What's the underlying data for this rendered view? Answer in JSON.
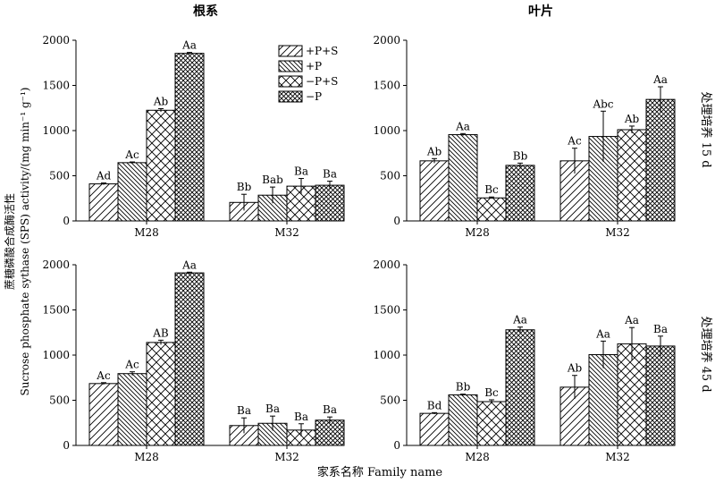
{
  "xlabel": "家系名称 Family name",
  "ylabel_cn": "蔗糖磷酸合成酶活性",
  "ylabel_en": "Sucrose phosphate sythase (SPS) activity/(mg min⁻¹ g⁻¹)",
  "col_titles": [
    "根系",
    "叶片"
  ],
  "row_titles": [
    "处理培养 15 d",
    "处理培养 45 d"
  ],
  "legend": [
    "+P+S",
    "+P",
    "−P+S",
    "−P"
  ],
  "chart_data": [
    {
      "type": "bar",
      "title": "根系",
      "condition": "处理培养 15 d",
      "categories": [
        "M28",
        "M32"
      ],
      "ylim": [
        0,
        2000
      ],
      "yticks": [
        "0",
        "500",
        "1000",
        "1500",
        "2000"
      ],
      "series": [
        {
          "name": "+P+S",
          "values": [
            410,
            205
          ],
          "errors": [
            10,
            90
          ],
          "labels": [
            "Ad",
            "Bb"
          ]
        },
        {
          "name": "+P",
          "values": [
            645,
            285
          ],
          "errors": [
            8,
            90
          ],
          "labels": [
            "Ac",
            "Bab"
          ]
        },
        {
          "name": "−P+S",
          "values": [
            1225,
            385
          ],
          "errors": [
            18,
            85
          ],
          "labels": [
            "Ab",
            "Ba"
          ]
        },
        {
          "name": "−P",
          "values": [
            1855,
            395
          ],
          "errors": [
            10,
            45
          ],
          "labels": [
            "Aa",
            "Ba"
          ]
        }
      ]
    },
    {
      "type": "bar",
      "title": "叶片",
      "condition": "处理培养 15 d",
      "categories": [
        "M28",
        "M32"
      ],
      "ylim": [
        0,
        2000
      ],
      "yticks": [
        "0",
        "500",
        "1000",
        "1500",
        "2000"
      ],
      "series": [
        {
          "name": "+P+S",
          "values": [
            665,
            665
          ],
          "errors": [
            25,
            140
          ],
          "labels": [
            "Ab",
            "Ac"
          ]
        },
        {
          "name": "+P",
          "values": [
            955,
            935
          ],
          "errors": [
            12,
            280
          ],
          "labels": [
            "Aa",
            "Abc"
          ]
        },
        {
          "name": "−P+S",
          "values": [
            255,
            1010
          ],
          "errors": [
            10,
            40
          ],
          "labels": [
            "Bc",
            "Ab"
          ]
        },
        {
          "name": "−P",
          "values": [
            615,
            1345
          ],
          "errors": [
            25,
            140
          ],
          "labels": [
            "Bb",
            "Aa"
          ]
        }
      ]
    },
    {
      "type": "bar",
      "title": "根系",
      "condition": "处理培养 45 d",
      "categories": [
        "M28",
        "M32"
      ],
      "ylim": [
        0,
        2000
      ],
      "yticks": [
        "0",
        "500",
        "1000",
        "1500",
        "2000"
      ],
      "series": [
        {
          "name": "+P+S",
          "values": [
            685,
            220
          ],
          "errors": [
            10,
            85
          ],
          "labels": [
            "Ac",
            "Ba"
          ]
        },
        {
          "name": "+P",
          "values": [
            795,
            245
          ],
          "errors": [
            20,
            80
          ],
          "labels": [
            "Ac",
            "Ba"
          ]
        },
        {
          "name": "−P+S",
          "values": [
            1140,
            170
          ],
          "errors": [
            25,
            70
          ],
          "labels": [
            "AB",
            "Ba"
          ]
        },
        {
          "name": "−P",
          "values": [
            1910,
            280
          ],
          "errors": [
            8,
            35
          ],
          "labels": [
            "Aa",
            "Ba"
          ]
        }
      ]
    },
    {
      "type": "bar",
      "title": "叶片",
      "condition": "处理培养 45 d",
      "categories": [
        "M28",
        "M32"
      ],
      "ylim": [
        0,
        2000
      ],
      "yticks": [
        "0",
        "500",
        "1000",
        "1500",
        "2000"
      ],
      "series": [
        {
          "name": "+P+S",
          "values": [
            355,
            645
          ],
          "errors": [
            8,
            130
          ],
          "labels": [
            "Bd",
            "Ab"
          ]
        },
        {
          "name": "+P",
          "values": [
            560,
            1005
          ],
          "errors": [
            8,
            150
          ],
          "labels": [
            "Bb",
            "Aa"
          ]
        },
        {
          "name": "−P+S",
          "values": [
            485,
            1125
          ],
          "errors": [
            20,
            180
          ],
          "labels": [
            "Bc",
            "Aa"
          ]
        },
        {
          "name": "−P",
          "values": [
            1280,
            1100
          ],
          "errors": [
            30,
            110
          ],
          "labels": [
            "Aa",
            "Ba"
          ]
        }
      ]
    }
  ]
}
